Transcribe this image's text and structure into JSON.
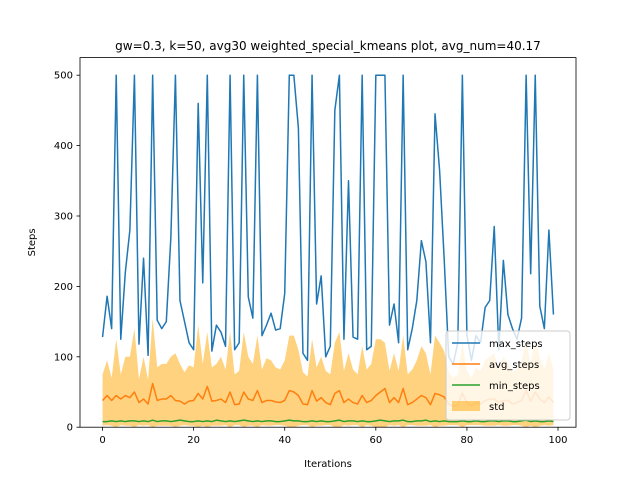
{
  "chart_data": {
    "type": "line",
    "title": "gw=0.3, k=50, avg30 weighted_special_kmeans plot, avg_num=40.17",
    "xlabel": "Iterations",
    "ylabel": "Steps",
    "xlim": [
      -4.95,
      103.95
    ],
    "ylim": [
      0,
      525
    ],
    "xticks": [
      0,
      20,
      40,
      60,
      80,
      100
    ],
    "yticks": [
      0,
      100,
      200,
      300,
      400,
      500
    ],
    "grid": false,
    "legend_position": "lower right",
    "colors": {
      "max_steps": "#1f77b4",
      "avg_steps": "#ff7f0e",
      "min_steps": "#2ca02c",
      "std": "#ffa500"
    },
    "x": [
      0,
      1,
      2,
      3,
      4,
      5,
      6,
      7,
      8,
      9,
      10,
      11,
      12,
      13,
      14,
      15,
      16,
      17,
      18,
      19,
      20,
      21,
      22,
      23,
      24,
      25,
      26,
      27,
      28,
      29,
      30,
      31,
      32,
      33,
      34,
      35,
      36,
      37,
      38,
      39,
      40,
      41,
      42,
      43,
      44,
      45,
      46,
      47,
      48,
      49,
      50,
      51,
      52,
      53,
      54,
      55,
      56,
      57,
      58,
      59,
      60,
      61,
      62,
      63,
      64,
      65,
      66,
      67,
      68,
      69,
      70,
      71,
      72,
      73,
      74,
      75,
      76,
      77,
      78,
      79,
      80,
      81,
      82,
      83,
      84,
      85,
      86,
      87,
      88,
      89,
      90,
      91,
      92,
      93,
      94,
      95,
      96,
      97,
      98,
      99
    ],
    "series": [
      {
        "name": "max_steps",
        "key": "max_steps",
        "values": [
          128,
          186,
          140,
          500,
          125,
          220,
          280,
          500,
          118,
          240,
          102,
          500,
          152,
          140,
          150,
          270,
          500,
          180,
          150,
          120,
          110,
          460,
          205,
          500,
          108,
          145,
          135,
          115,
          500,
          110,
          120,
          500,
          185,
          155,
          500,
          130,
          145,
          162,
          138,
          140,
          190,
          500,
          500,
          425,
          105,
          95,
          500,
          175,
          215,
          100,
          115,
          450,
          500,
          125,
          350,
          128,
          125,
          500,
          110,
          115,
          500,
          500,
          500,
          145,
          175,
          120,
          500,
          110,
          140,
          180,
          265,
          235,
          120,
          445,
          365,
          240,
          100,
          90,
          120,
          500,
          130,
          95,
          130,
          120,
          170,
          180,
          285,
          110,
          237,
          160,
          140,
          125,
          155,
          500,
          218,
          500,
          172,
          140,
          280,
          160
        ]
      },
      {
        "name": "avg_steps",
        "key": "avg_steps",
        "values": [
          38,
          45,
          38,
          45,
          40,
          45,
          42,
          50,
          35,
          40,
          33,
          62,
          38,
          40,
          40,
          45,
          38,
          37,
          33,
          37,
          38,
          48,
          40,
          58,
          37,
          38,
          40,
          35,
          50,
          32,
          33,
          50,
          40,
          38,
          52,
          35,
          38,
          38,
          36,
          35,
          38,
          52,
          50,
          45,
          33,
          32,
          52,
          37,
          42,
          35,
          32,
          48,
          52,
          35,
          40,
          35,
          33,
          45,
          35,
          38,
          45,
          50,
          55,
          35,
          42,
          35,
          55,
          32,
          35,
          40,
          45,
          42,
          32,
          48,
          46,
          43,
          33,
          30,
          32,
          48,
          35,
          30,
          35,
          33,
          38,
          40,
          40,
          35,
          38,
          38,
          33,
          35,
          38,
          52,
          37,
          50,
          40,
          35,
          43,
          35
        ]
      },
      {
        "name": "min_steps",
        "key": "min_steps",
        "values": [
          8,
          8,
          9,
          8,
          9,
          8,
          9,
          9,
          8,
          9,
          8,
          10,
          8,
          9,
          9,
          8,
          9,
          10,
          9,
          8,
          8,
          9,
          8,
          9,
          8,
          10,
          9,
          8,
          9,
          8,
          9,
          10,
          9,
          8,
          9,
          8,
          9,
          9,
          8,
          8,
          9,
          10,
          9,
          9,
          8,
          8,
          9,
          8,
          9,
          8,
          8,
          9,
          10,
          8,
          9,
          9,
          8,
          9,
          8,
          8,
          9,
          10,
          9,
          8,
          9,
          9,
          10,
          8,
          8,
          9,
          9,
          10,
          8,
          9,
          8,
          9,
          8,
          8,
          8,
          9,
          8,
          8,
          9,
          8,
          8,
          9,
          9,
          8,
          9,
          9,
          8,
          8,
          9,
          10,
          8,
          9,
          8,
          8,
          9,
          8
        ]
      }
    ],
    "std_band": {
      "name": "std",
      "upper": [
        75,
        95,
        70,
        125,
        75,
        100,
        100,
        140,
        68,
        100,
        67,
        155,
        85,
        90,
        90,
        100,
        105,
        90,
        78,
        88,
        85,
        145,
        90,
        135,
        85,
        90,
        100,
        82,
        135,
        75,
        80,
        135,
        100,
        90,
        130,
        82,
        98,
        95,
        85,
        82,
        95,
        130,
        130,
        110,
        78,
        72,
        125,
        85,
        100,
        80,
        75,
        120,
        135,
        80,
        105,
        82,
        75,
        115,
        82,
        90,
        125,
        125,
        120,
        80,
        105,
        80,
        130,
        75,
        82,
        95,
        115,
        105,
        75,
        130,
        120,
        108,
        78,
        70,
        75,
        120,
        80,
        70,
        85,
        80,
        95,
        100,
        105,
        82,
        100,
        90,
        78,
        82,
        95,
        125,
        90,
        125,
        98,
        82,
        105,
        82
      ],
      "lower": [
        2,
        3,
        2,
        0,
        3,
        2,
        2,
        0,
        3,
        2,
        3,
        0,
        2,
        2,
        2,
        2,
        0,
        2,
        3,
        2,
        2,
        0,
        2,
        0,
        2,
        2,
        2,
        3,
        0,
        3,
        3,
        0,
        2,
        2,
        0,
        3,
        2,
        2,
        3,
        3,
        2,
        0,
        0,
        2,
        3,
        3,
        0,
        2,
        2,
        3,
        3,
        0,
        0,
        3,
        2,
        3,
        3,
        0,
        3,
        2,
        0,
        0,
        0,
        3,
        2,
        3,
        0,
        3,
        3,
        2,
        2,
        2,
        3,
        0,
        2,
        2,
        3,
        3,
        3,
        0,
        3,
        3,
        3,
        3,
        2,
        2,
        2,
        3,
        2,
        2,
        3,
        3,
        2,
        0,
        2,
        0,
        2,
        3,
        2,
        3
      ]
    }
  }
}
